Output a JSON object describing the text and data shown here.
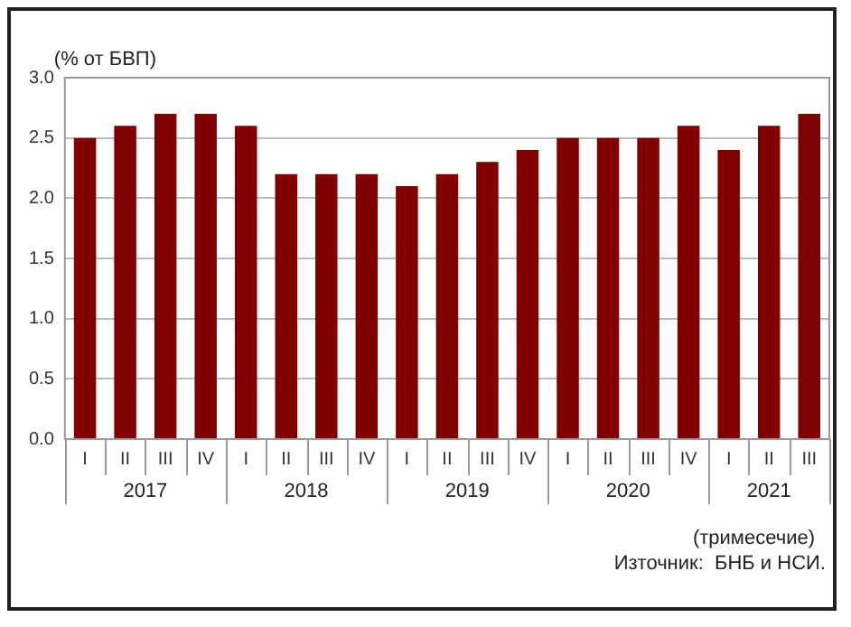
{
  "chart_data": {
    "type": "bar",
    "ylabel": "(% от БВП)",
    "xlabel": "(тримесечие)",
    "categories": [
      "I",
      "II",
      "III",
      "IV",
      "I",
      "II",
      "III",
      "IV",
      "I",
      "II",
      "III",
      "IV",
      "I",
      "II",
      "III",
      "IV",
      "I",
      "II",
      "III"
    ],
    "values": [
      2.5,
      2.6,
      2.7,
      2.7,
      2.6,
      2.2,
      2.2,
      2.2,
      2.1,
      2.2,
      2.3,
      2.4,
      2.5,
      2.5,
      2.5,
      2.6,
      2.4,
      2.6,
      2.7
    ],
    "color": "#800000",
    "ylim": [
      0,
      3
    ],
    "yticks": [
      {
        "value": 0,
        "label": "0.0"
      },
      {
        "value": 0.5,
        "label": "0.5"
      },
      {
        "value": 1,
        "label": "1.0"
      },
      {
        "value": 1.5,
        "label": "1.5"
      },
      {
        "value": 2,
        "label": "2.0"
      },
      {
        "value": 2.5,
        "label": "2.5"
      },
      {
        "value": 3,
        "label": "3.0"
      }
    ],
    "grid": "y",
    "legend": false,
    "annotations": [
      "2017",
      "2018",
      "2019",
      "2020",
      "2021",
      "Източник:  БНБ и НСИ."
    ]
  }
}
